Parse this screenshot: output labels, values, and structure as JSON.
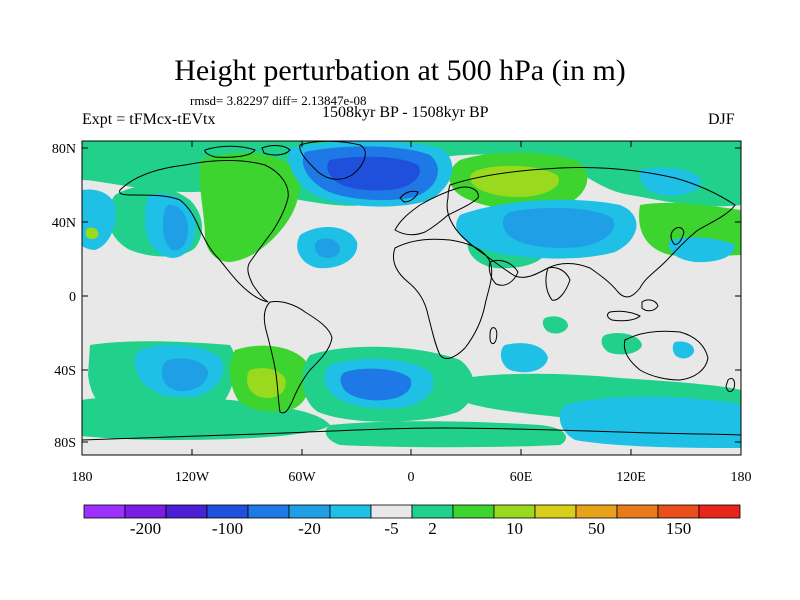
{
  "title": "Height perturbation at 500 hPa (in m)",
  "stats": "rmsd= 3.82297 diff= 2.13847e-08",
  "expt": "Expt = tFMcx-tEVtx",
  "period": "1508kyr BP - 1508kyr BP",
  "season": "DJF",
  "axes": {
    "lat_labels": [
      "80N",
      "40N",
      "0",
      "40S",
      "80S"
    ],
    "lon_labels": [
      "180",
      "120W",
      "60W",
      "0",
      "60E",
      "120E",
      "180"
    ]
  },
  "colorbar": {
    "labels": [
      "-200",
      "-100",
      "-20",
      "-5",
      "2",
      "10",
      "50",
      "150"
    ],
    "colors": [
      "#9b30ff",
      "#7a1ee6",
      "#4b1fd6",
      "#1f50dc",
      "#1e78e6",
      "#1fa0e6",
      "#1ec0e6",
      "#e8e8e8",
      "#21d08a",
      "#3ed42f",
      "#99d91e",
      "#d9cf1a",
      "#e7a21a",
      "#e87a1a",
      "#e84f1a",
      "#e8251a"
    ]
  },
  "map": {
    "background": "#e8e8e8",
    "anomalies": [
      {
        "label": "NE Pacific",
        "level": "-5",
        "color": "#1fa0e6"
      },
      {
        "label": "North America",
        "level": "2",
        "color": "#21d08a"
      },
      {
        "label": "North Atlantic / Greenland",
        "level": "-20",
        "color": "#1f50dc"
      },
      {
        "label": "Western Russia",
        "level": "10",
        "color": "#99d91e"
      },
      {
        "label": "Central Asia",
        "level": "-5",
        "color": "#1ec0e6"
      },
      {
        "label": "South Pacific",
        "level": "-5",
        "color": "#1ec0e6"
      },
      {
        "label": "South America",
        "level": "10",
        "color": "#3ed42f"
      },
      {
        "label": "South Atlantic",
        "level": "-20",
        "color": "#1e78e6"
      },
      {
        "label": "Southern Indian Ocean",
        "level": "-5",
        "color": "#1ec0e6"
      }
    ]
  }
}
